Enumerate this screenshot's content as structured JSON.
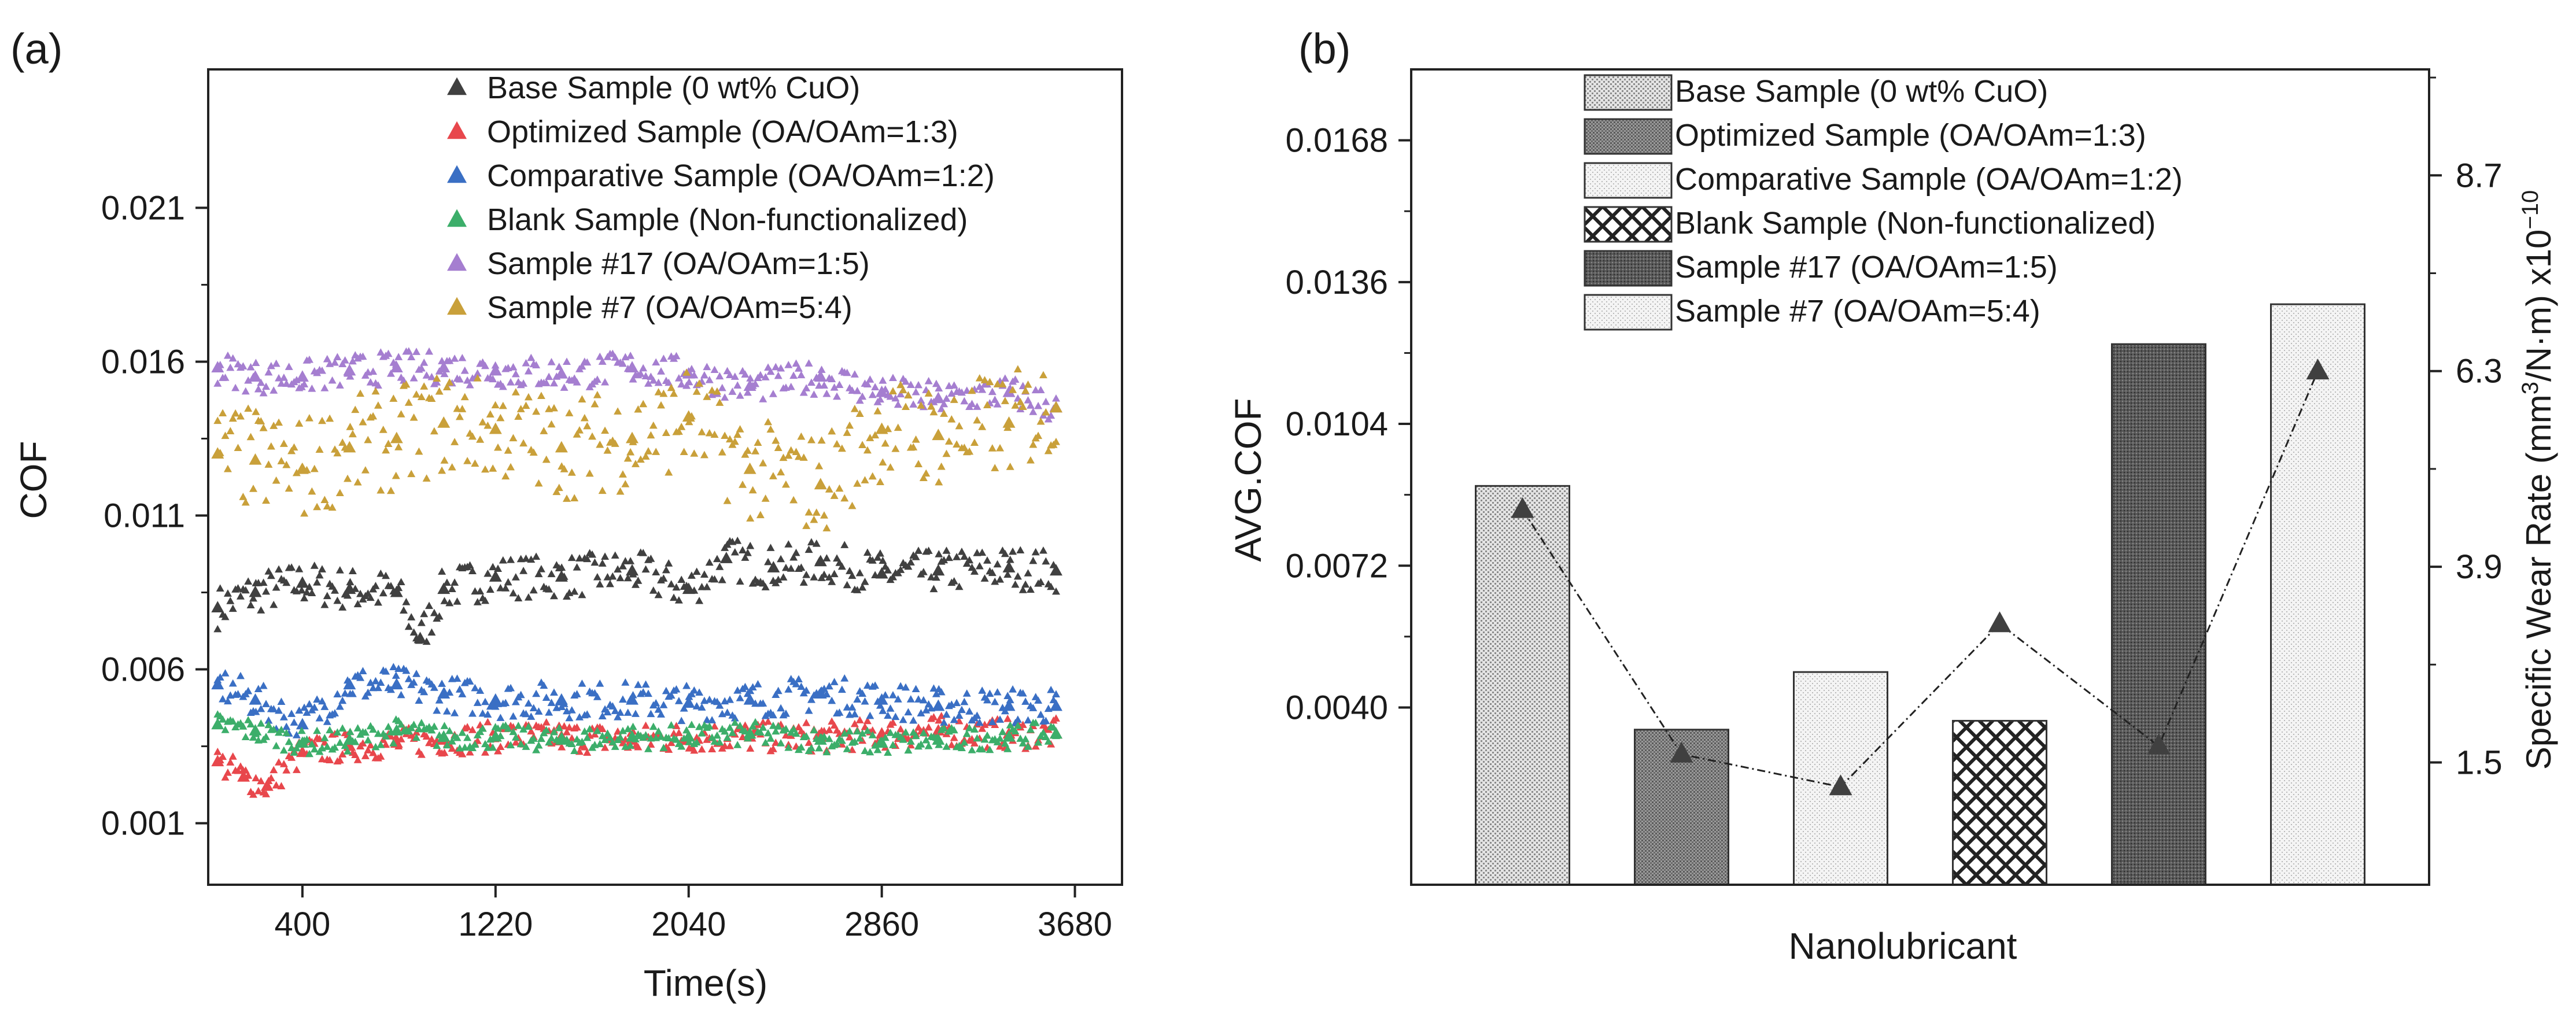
{
  "panel_a": {
    "label": "(a)",
    "chart_data": {
      "type": "scatter",
      "xlabel": "Time(s)",
      "ylabel": "COF",
      "xlim": [
        0,
        3880
      ],
      "ylim": [
        -0.001,
        0.0255
      ],
      "xticks": [
        400,
        1220,
        2040,
        2860,
        3680
      ],
      "xtick_labels": [
        "400",
        "1220",
        "2040",
        "2860",
        "3680"
      ],
      "yticks": [
        0.001,
        0.006,
        0.011,
        0.016,
        0.021
      ],
      "ytick_labels": [
        "0.001",
        "0.006",
        "0.011",
        "0.016",
        "0.021"
      ],
      "legend": "top-center",
      "series": [
        {
          "name": "Base Sample (0 wt% CuO)",
          "color": "#404040",
          "legend_label": " Base Sample (0 wt% CuO)",
          "x": [
            40,
            200,
            400,
            600,
            800,
            900,
            1000,
            1220,
            1500,
            1800,
            2040,
            2200,
            2400,
            2600,
            2860,
            3100,
            3400,
            3600
          ],
          "y": [
            0.008,
            0.0085,
            0.0088,
            0.0086,
            0.0085,
            0.007,
            0.0086,
            0.009,
            0.009,
            0.0092,
            0.0086,
            0.0096,
            0.0093,
            0.0095,
            0.0091,
            0.0092,
            0.0093,
            0.0092
          ]
        },
        {
          "name": "Optimized Sample (OA/OAm=1:3)",
          "color": "#e8474c",
          "legend_label": "Optimized Sample (OA/OAm=1:3)",
          "x": [
            40,
            150,
            250,
            400,
            600,
            800,
            1000,
            1220,
            1500,
            1800,
            2040,
            2300,
            2600,
            2860,
            3100,
            3400,
            3600
          ],
          "y": [
            0.003,
            0.0025,
            0.0022,
            0.0033,
            0.0035,
            0.0036,
            0.0037,
            0.0038,
            0.0038,
            0.0037,
            0.0038,
            0.0038,
            0.0038,
            0.0039,
            0.004,
            0.0039,
            0.0039
          ]
        },
        {
          "name": "Comparative Sample (OA/OAm=1:2)",
          "color": "#3a6fc4",
          "legend_label": "Comparative Sample (OA/OAm=1:2)",
          "x": [
            40,
            200,
            400,
            600,
            800,
            1000,
            1220,
            1500,
            1800,
            2040,
            2300,
            2600,
            2860,
            3100,
            3400,
            3600
          ],
          "y": [
            0.0055,
            0.005,
            0.0042,
            0.0055,
            0.0055,
            0.0052,
            0.005,
            0.005,
            0.005,
            0.0049,
            0.005,
            0.0052,
            0.005,
            0.0048,
            0.0048,
            0.0048
          ]
        },
        {
          "name": "Blank Sample (Non-functionalized)",
          "color": "#3cae6a",
          "legend_label": "Blank Sample (Non-functionalized)",
          "x": [
            40,
            200,
            400,
            600,
            800,
            1000,
            1220,
            1500,
            1800,
            2040,
            2300,
            2600,
            2860,
            3100,
            3400,
            3600
          ],
          "y": [
            0.0042,
            0.004,
            0.0036,
            0.0037,
            0.004,
            0.0038,
            0.0038,
            0.0037,
            0.0038,
            0.0038,
            0.0039,
            0.0037,
            0.0036,
            0.0037,
            0.0038,
            0.0039
          ]
        },
        {
          "name": "Sample #17 (OA/OAm=1:5)",
          "color": "#a57ed0",
          "legend_label": "Sample #17 (OA/OAm=1:5)",
          "x": [
            40,
            200,
            400,
            600,
            800,
            1000,
            1220,
            1500,
            1800,
            2040,
            2300,
            2600,
            2860,
            3100,
            3400,
            3600
          ],
          "y": [
            0.0158,
            0.0155,
            0.0155,
            0.0157,
            0.0158,
            0.0158,
            0.0157,
            0.0156,
            0.0158,
            0.0156,
            0.0152,
            0.0155,
            0.015,
            0.0148,
            0.015,
            0.0145
          ]
        },
        {
          "name": "Sample #7 (OA/OAm=5:4)",
          "color": "#c9a03a",
          "legend_label": "Sample #7 (OA/OAm=5:4)",
          "x": [
            40,
            200,
            400,
            600,
            800,
            1000,
            1220,
            1500,
            1800,
            2040,
            2300,
            2600,
            2860,
            3100,
            3400,
            3600
          ],
          "y": [
            0.013,
            0.0128,
            0.0125,
            0.0132,
            0.0135,
            0.014,
            0.0138,
            0.0132,
            0.0135,
            0.0142,
            0.0125,
            0.012,
            0.0138,
            0.0136,
            0.014,
            0.0145
          ]
        }
      ]
    }
  },
  "panel_b": {
    "label": "(b)",
    "chart_data": {
      "type": "bar",
      "xlabel": "Nanolubricant",
      "ylabel": "AVG.COF",
      "ylabel_right_parts": {
        "prefix": "Specific Wear Rate (mm",
        "sup1": "3",
        "mid": "/N·m) x10",
        "sup2": "−10"
      },
      "ylim": [
        0.0,
        0.0184
      ],
      "y2lim": [
        0.0,
        10.0
      ],
      "yticks": [
        0.004,
        0.0072,
        0.0104,
        0.0136,
        0.0168
      ],
      "ytick_labels": [
        "0.0040",
        "0.0072",
        "0.0104",
        "0.0136",
        "0.0168"
      ],
      "y2ticks": [
        1.5,
        3.9,
        6.3,
        8.7
      ],
      "y2tick_labels": [
        "1.5",
        "3.9",
        "6.3",
        "8.7"
      ],
      "legend": "top-center",
      "categories": [
        "Base Sample (0 wt% CuO)",
        "Optimized Sample (OA/OAm=1:3)",
        "Comparative Sample (OA/OAm=1:2)",
        "Blank Sample (Non-functionalized)",
        "Sample #17 (OA/OAm=1:5)",
        "Sample #7 (OA/OAm=5:4)"
      ],
      "legend_labels": [
        " Base Sample (0 wt% CuO)",
        "Optimized Sample (OA/OAm=1:3)",
        "Comparative Sample (OA/OAm=1:2)",
        "Blank Sample (Non-functionalized)",
        "Sample #17 (OA/OAm=1:5)",
        "Sample #7 (OA/OAm=5:4)"
      ],
      "values": [
        0.009,
        0.0035,
        0.0048,
        0.0037,
        0.0122,
        0.0131
      ],
      "wear_rate": [
        4.6,
        1.6,
        1.2,
        3.2,
        1.7,
        6.3
      ],
      "patterns": [
        "dots",
        "grid",
        "light",
        "cross",
        "dense",
        "light"
      ]
    }
  }
}
